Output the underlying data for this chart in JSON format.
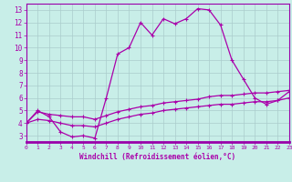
{
  "xlabel": "Windchill (Refroidissement éolien,°C)",
  "xlim": [
    0,
    23
  ],
  "ylim": [
    2.5,
    13.5
  ],
  "xticks": [
    0,
    1,
    2,
    3,
    4,
    5,
    6,
    7,
    8,
    9,
    10,
    11,
    12,
    13,
    14,
    15,
    16,
    17,
    18,
    19,
    20,
    21,
    22,
    23
  ],
  "yticks": [
    3,
    4,
    5,
    6,
    7,
    8,
    9,
    10,
    11,
    12,
    13
  ],
  "background_color": "#c8eee8",
  "line_color": "#aa00aa",
  "grid_color": "#aacccc",
  "spine_color": "#9900aa",
  "line1_x": [
    0,
    1,
    2,
    3,
    4,
    5,
    6,
    7,
    8,
    9,
    10,
    11,
    12,
    13,
    14,
    15,
    16,
    17,
    18,
    19,
    20,
    21,
    22,
    23
  ],
  "line1_y": [
    4.0,
    5.0,
    4.5,
    3.3,
    2.9,
    3.0,
    2.8,
    6.0,
    9.5,
    10.0,
    12.0,
    11.0,
    12.3,
    11.9,
    12.3,
    13.1,
    13.0,
    11.8,
    9.0,
    7.5,
    6.0,
    5.5,
    5.8,
    6.5
  ],
  "line2_x": [
    0,
    1,
    2,
    3,
    4,
    5,
    6,
    7,
    8,
    9,
    10,
    11,
    12,
    13,
    14,
    15,
    16,
    17,
    18,
    19,
    20,
    21,
    22,
    23
  ],
  "line2_y": [
    4.0,
    4.9,
    4.7,
    4.6,
    4.5,
    4.5,
    4.3,
    4.6,
    4.9,
    5.1,
    5.3,
    5.4,
    5.6,
    5.7,
    5.8,
    5.9,
    6.1,
    6.2,
    6.2,
    6.3,
    6.4,
    6.4,
    6.5,
    6.6
  ],
  "line3_x": [
    0,
    1,
    2,
    3,
    4,
    5,
    6,
    7,
    8,
    9,
    10,
    11,
    12,
    13,
    14,
    15,
    16,
    17,
    18,
    19,
    20,
    21,
    22,
    23
  ],
  "line3_y": [
    4.0,
    4.3,
    4.2,
    4.0,
    3.8,
    3.8,
    3.7,
    4.0,
    4.3,
    4.5,
    4.7,
    4.8,
    5.0,
    5.1,
    5.2,
    5.3,
    5.4,
    5.5,
    5.5,
    5.6,
    5.7,
    5.7,
    5.8,
    6.0
  ],
  "figsize": [
    3.2,
    2.0
  ],
  "dpi": 100
}
